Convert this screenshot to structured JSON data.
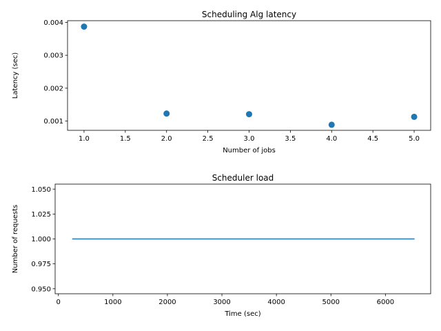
{
  "chart_data": [
    {
      "type": "scatter",
      "title": "Scheduling Alg latency",
      "xlabel": "Number of jobs",
      "ylabel": "Latency (sec)",
      "xlim": [
        0.8,
        5.2
      ],
      "ylim": [
        0.00072,
        0.00405
      ],
      "xticks": [
        1.0,
        1.5,
        2.0,
        2.5,
        3.0,
        3.5,
        4.0,
        4.5,
        5.0
      ],
      "xtick_labels": [
        "1.0",
        "1.5",
        "2.0",
        "2.5",
        "3.0",
        "3.5",
        "4.0",
        "4.5",
        "5.0"
      ],
      "yticks": [
        0.001,
        0.002,
        0.003,
        0.004
      ],
      "ytick_labels": [
        "0.001",
        "0.002",
        "0.003",
        "0.004"
      ],
      "grid": false,
      "color": "#1f77b4",
      "x": [
        1,
        2,
        3,
        4,
        5
      ],
      "y": [
        0.00387,
        0.00123,
        0.00121,
        0.00089,
        0.00113
      ]
    },
    {
      "type": "line",
      "title": "Scheduler load",
      "xlabel": "Time (sec)",
      "ylabel": "Number of requests",
      "xlim": [
        -60,
        6830
      ],
      "ylim": [
        0.945,
        1.055
      ],
      "xticks": [
        0,
        1000,
        2000,
        3000,
        4000,
        5000,
        6000
      ],
      "xtick_labels": [
        "0",
        "1000",
        "2000",
        "3000",
        "4000",
        "5000",
        "6000"
      ],
      "yticks": [
        0.95,
        0.975,
        1.0,
        1.025,
        1.05
      ],
      "ytick_labels": [
        "0.950",
        "0.975",
        "1.000",
        "1.025",
        "1.050"
      ],
      "grid": false,
      "color": "#1f77b4",
      "x": [
        253,
        6535
      ],
      "y": [
        1.0,
        1.0
      ]
    }
  ]
}
